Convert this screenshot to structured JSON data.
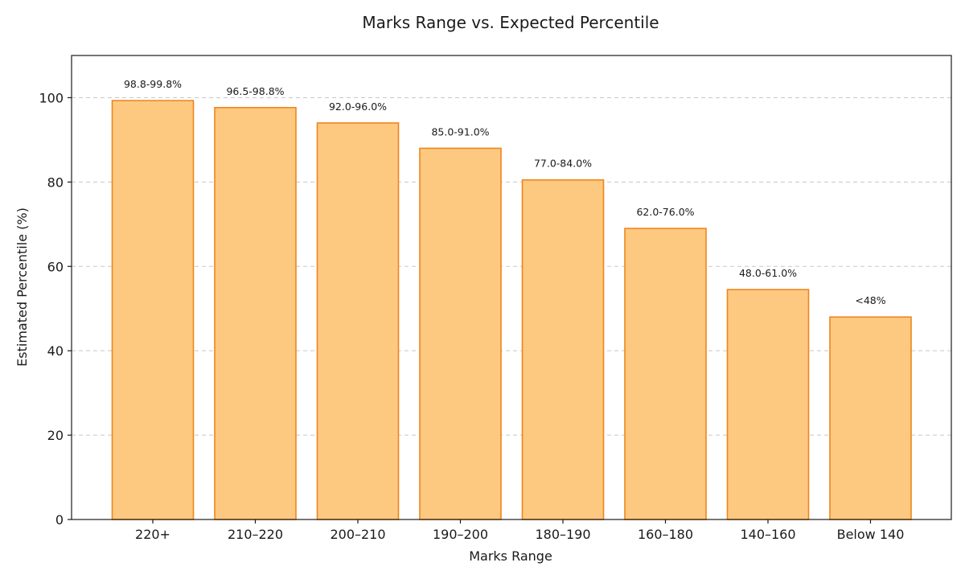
{
  "chart_data": {
    "type": "bar",
    "title": "Marks Range vs. Expected Percentile",
    "xlabel": "Marks Range",
    "ylabel": "Estimated Percentile (%)",
    "categories": [
      "220+",
      "210–220",
      "200–210",
      "190–200",
      "180–190",
      "160–180",
      "140–160",
      "Below 140"
    ],
    "values": [
      99.3,
      97.65,
      94.0,
      88.0,
      80.5,
      69.0,
      54.5,
      48.0
    ],
    "data_labels": [
      "98.8-99.8%",
      "96.5-98.8%",
      "92.0-96.0%",
      "85.0-91.0%",
      "77.0-84.0%",
      "62.0-76.0%",
      "48.0-61.0%",
      "<48%"
    ],
    "ylim": [
      0,
      110
    ],
    "yticks": [
      0,
      20,
      40,
      60,
      80,
      100
    ],
    "grid": "y-dashed",
    "colors": {
      "bar_fill": "#fdc981",
      "bar_edge": "#f0851c"
    }
  }
}
